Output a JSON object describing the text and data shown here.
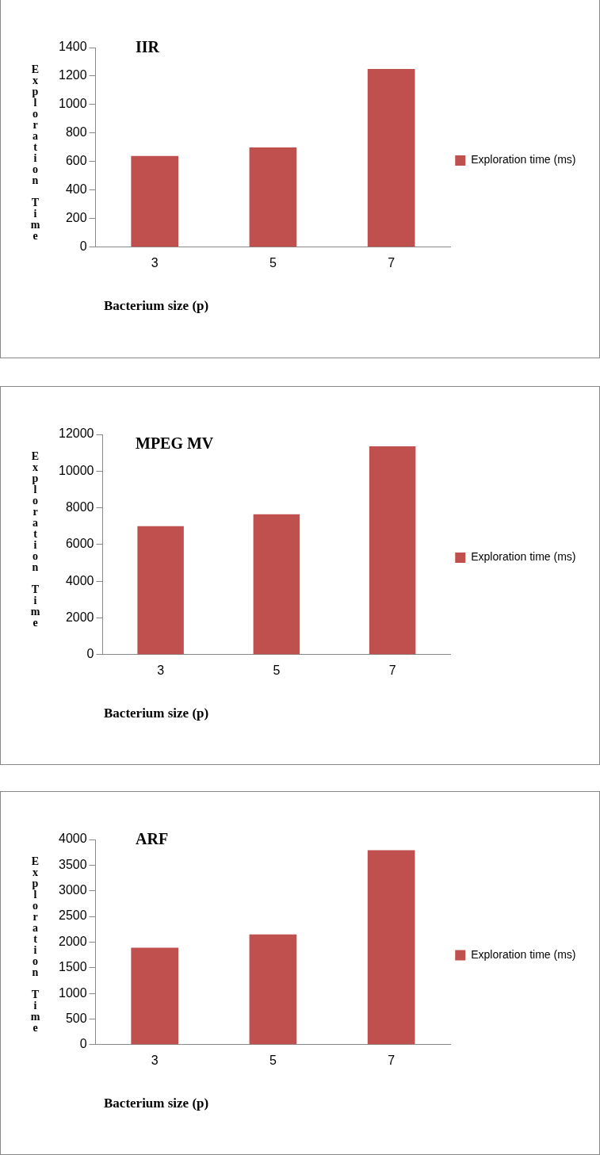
{
  "chart_data": [
    {
      "type": "bar",
      "title": "IIR",
      "xlabel": "Bacterium size (p)",
      "ylabel": "Exploration Time",
      "categories": [
        "3",
        "5",
        "7"
      ],
      "series": [
        {
          "name": "Exploration time (ms)",
          "color": "#c0504d",
          "values": [
            640,
            700,
            1250
          ]
        }
      ],
      "ylim": [
        0,
        1400
      ],
      "yticks": [
        0,
        200,
        400,
        600,
        800,
        1000,
        1200,
        1400
      ],
      "grid": false,
      "legend": "right"
    },
    {
      "type": "bar",
      "title": "MPEG MV",
      "xlabel": "Bacterium size (p)",
      "ylabel": "Exploration Time",
      "categories": [
        "3",
        "5",
        "7"
      ],
      "series": [
        {
          "name": "Exploration time (ms)",
          "color": "#c0504d",
          "values": [
            7000,
            7650,
            11350
          ]
        }
      ],
      "ylim": [
        0,
        12000
      ],
      "yticks": [
        0,
        2000,
        4000,
        6000,
        8000,
        10000,
        12000
      ],
      "grid": false,
      "legend": "right"
    },
    {
      "type": "bar",
      "title": "ARF",
      "xlabel": "Bacterium size (p)",
      "ylabel": "Exploration Time",
      "categories": [
        "3",
        "5",
        "7"
      ],
      "series": [
        {
          "name": "Exploration time (ms)",
          "color": "#c0504d",
          "values": [
            1890,
            2150,
            3790
          ]
        }
      ],
      "ylim": [
        0,
        4000
      ],
      "yticks": [
        0,
        500,
        1000,
        1500,
        2000,
        2500,
        3000,
        3500,
        4000
      ],
      "grid": false,
      "legend": "right"
    }
  ]
}
